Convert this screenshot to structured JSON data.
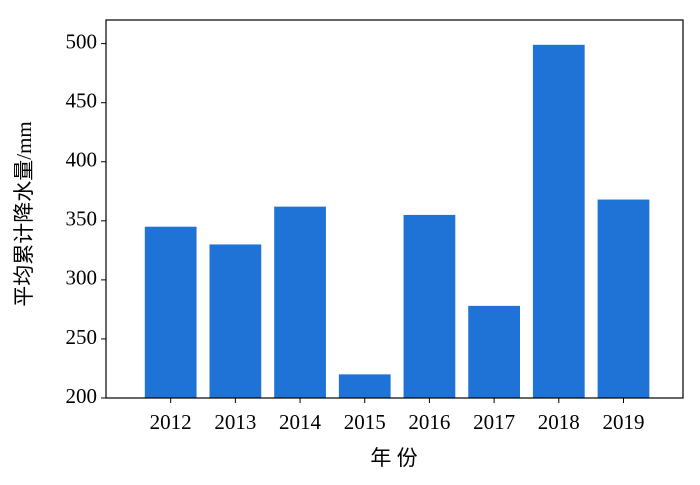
{
  "chart_data": {
    "type": "bar",
    "xlabel": "年  份",
    "ylabel": "平均累计降水量/mm",
    "categories": [
      "2012",
      "2013",
      "2014",
      "2015",
      "2016",
      "2017",
      "2018",
      "2019"
    ],
    "values": [
      345,
      330,
      362,
      220,
      355,
      278,
      499,
      368
    ],
    "color": "#1f72d6",
    "ylim": [
      200,
      520
    ],
    "yticks": [
      200,
      250,
      300,
      350,
      400,
      450,
      500
    ]
  }
}
